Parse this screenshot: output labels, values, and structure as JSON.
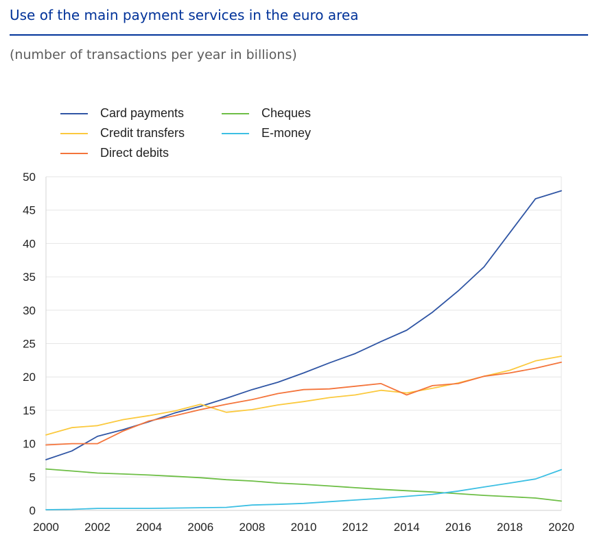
{
  "page": {
    "title": "Use of the main payment services in the euro area",
    "subtitle": "(number of transactions per year in billions)"
  },
  "colors": {
    "title": "#003299",
    "card_payments": "#2f55a4",
    "credit_transfers": "#fbc93d",
    "direct_debits": "#f4743b",
    "cheques": "#6dbe45",
    "e_money": "#3cbfe3",
    "grid": "#e6e6e6"
  },
  "chart_data": {
    "type": "line",
    "title": "Use of the main payment services in the euro area",
    "subtitle": "(number of transactions per year in billions)",
    "xlabel": "",
    "ylabel": "",
    "xlim": [
      2000,
      2020
    ],
    "ylim": [
      0,
      50
    ],
    "xticks": [
      "2000",
      "2002",
      "2004",
      "2006",
      "2008",
      "2010",
      "2012",
      "2014",
      "2016",
      "2018",
      "2020"
    ],
    "yticks": [
      "0",
      "5",
      "10",
      "15",
      "20",
      "25",
      "30",
      "35",
      "40",
      "45",
      "50"
    ],
    "grid": true,
    "legend_position": "top-left",
    "x": [
      2000,
      2001,
      2002,
      2003,
      2004,
      2005,
      2006,
      2007,
      2008,
      2009,
      2010,
      2011,
      2012,
      2013,
      2014,
      2015,
      2016,
      2017,
      2018,
      2019,
      2020
    ],
    "series": [
      {
        "name": "Card payments",
        "color_key": "card_payments",
        "values": [
          7.6,
          8.9,
          11.1,
          12.1,
          13.3,
          14.6,
          15.6,
          16.8,
          18.1,
          19.2,
          20.6,
          22.1,
          23.5,
          25.3,
          27.0,
          29.7,
          32.9,
          36.5,
          41.6,
          46.7,
          47.9
        ]
      },
      {
        "name": "Cheques",
        "color_key": "cheques",
        "values": [
          6.2,
          5.9,
          5.6,
          5.45,
          5.3,
          5.1,
          4.9,
          4.6,
          4.4,
          4.1,
          3.9,
          3.65,
          3.4,
          3.15,
          2.95,
          2.75,
          2.5,
          2.25,
          2.05,
          1.85,
          1.4
        ]
      },
      {
        "name": "Credit transfers",
        "color_key": "credit_transfers",
        "values": [
          11.3,
          12.4,
          12.7,
          13.6,
          14.2,
          14.9,
          15.9,
          14.7,
          15.1,
          15.8,
          16.3,
          16.9,
          17.3,
          18.0,
          17.6,
          18.3,
          19.1,
          20.1,
          21.0,
          22.4,
          23.1
        ]
      },
      {
        "name": "E-money",
        "color_key": "e_money",
        "values": [
          0.1,
          0.15,
          0.3,
          0.3,
          0.3,
          0.35,
          0.4,
          0.45,
          0.8,
          0.9,
          1.05,
          1.3,
          1.55,
          1.8,
          2.1,
          2.4,
          2.9,
          3.5,
          4.1,
          4.7,
          6.1
        ]
      },
      {
        "name": "Direct debits",
        "color_key": "direct_debits",
        "values": [
          9.8,
          10.0,
          10.0,
          11.9,
          13.4,
          14.2,
          15.1,
          15.9,
          16.6,
          17.5,
          18.1,
          18.2,
          18.6,
          19.0,
          17.3,
          18.7,
          19.0,
          20.1,
          20.6,
          21.3,
          22.2
        ]
      }
    ]
  }
}
